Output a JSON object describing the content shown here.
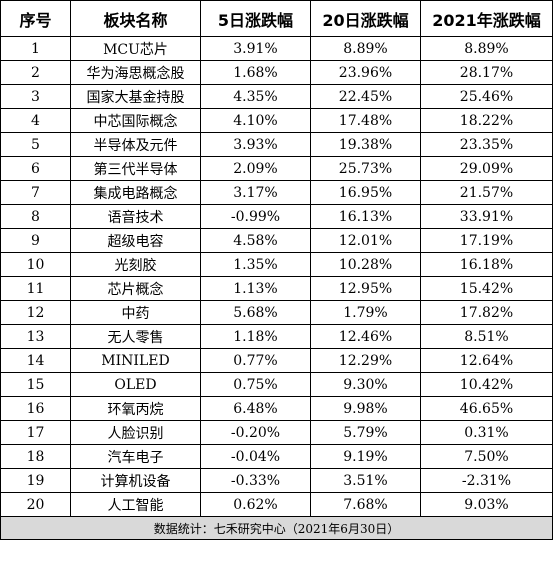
{
  "headers": [
    "序号",
    "板块名称",
    "5日涨跌幅",
    "20日涨跌幅",
    "2021年涨跌幅"
  ],
  "rows": [
    [
      "1",
      "MCU芯片",
      "3.91%",
      "8.89%",
      "8.89%"
    ],
    [
      "2",
      "华为海思概念股",
      "1.68%",
      "23.96%",
      "28.17%"
    ],
    [
      "3",
      "国家大基金持股",
      "4.35%",
      "22.45%",
      "25.46%"
    ],
    [
      "4",
      "中芯国际概念",
      "4.10%",
      "17.48%",
      "18.22%"
    ],
    [
      "5",
      "半导体及元件",
      "3.93%",
      "19.38%",
      "23.35%"
    ],
    [
      "6",
      "第三代半导体",
      "2.09%",
      "25.73%",
      "29.09%"
    ],
    [
      "7",
      "集成电路概念",
      "3.17%",
      "16.95%",
      "21.57%"
    ],
    [
      "8",
      "语音技术",
      "-0.99%",
      "16.13%",
      "33.91%"
    ],
    [
      "9",
      "超级电容",
      "4.58%",
      "12.01%",
      "17.19%"
    ],
    [
      "10",
      "光刻胶",
      "1.35%",
      "10.28%",
      "16.18%"
    ],
    [
      "11",
      "芯片概念",
      "1.13%",
      "12.95%",
      "15.42%"
    ],
    [
      "12",
      "中药",
      "5.68%",
      "1.79%",
      "17.82%"
    ],
    [
      "13",
      "无人零售",
      "1.18%",
      "12.46%",
      "8.51%"
    ],
    [
      "14",
      "MINILED",
      "0.77%",
      "12.29%",
      "12.64%"
    ],
    [
      "15",
      "OLED",
      "0.75%",
      "9.30%",
      "10.42%"
    ],
    [
      "16",
      "环氧丙烷",
      "6.48%",
      "9.98%",
      "46.65%"
    ],
    [
      "17",
      "人脸识别",
      "-0.20%",
      "5.79%",
      "0.31%"
    ],
    [
      "18",
      "汽车电子",
      "-0.04%",
      "9.19%",
      "7.50%"
    ],
    [
      "19",
      "计算机设备",
      "-0.33%",
      "3.51%",
      "-2.31%"
    ],
    [
      "20",
      "人工智能",
      "0.62%",
      "7.68%",
      "9.03%"
    ]
  ],
  "footer": "数据统计：七禾研究中心（2021年6月30日）"
}
